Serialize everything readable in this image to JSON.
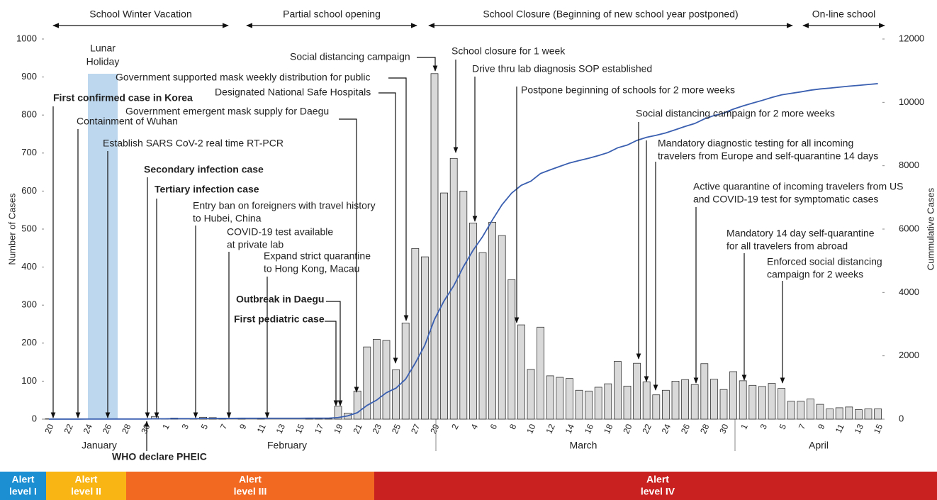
{
  "chart_data": {
    "type": "combo",
    "y_label": "Number of Cases",
    "y2_label": "Cummulative Cases",
    "ylim": [
      0,
      1000
    ],
    "yticks": [
      0,
      100,
      200,
      300,
      400,
      500,
      600,
      700,
      800,
      900,
      1000
    ],
    "y2lim": [
      0,
      12000
    ],
    "y2ticks": [
      0,
      2000,
      4000,
      6000,
      8000,
      10000,
      12000
    ],
    "categories": [
      "20",
      null,
      "22",
      null,
      "24",
      null,
      "26",
      null,
      "28",
      null,
      "30",
      null,
      "1",
      null,
      "3",
      null,
      "5",
      null,
      "7",
      null,
      "9",
      null,
      "11",
      null,
      "13",
      null,
      "15",
      null,
      "17",
      null,
      "19",
      null,
      "21",
      null,
      "23",
      null,
      "25",
      null,
      "27",
      null,
      "29",
      null,
      "2",
      null,
      "4",
      null,
      "6",
      null,
      "8",
      null,
      "10",
      null,
      "12",
      null,
      "14",
      null,
      "16",
      null,
      "18",
      null,
      "20",
      null,
      "22",
      null,
      "24",
      null,
      "26",
      null,
      "28",
      null,
      "30",
      null,
      "1",
      null,
      "3",
      null,
      "5",
      null,
      "7",
      null,
      "9",
      null,
      "11",
      null,
      "13",
      null,
      "15"
    ],
    "months": [
      "January",
      "February",
      "March",
      "April"
    ],
    "series": [
      {
        "type": "bar",
        "color": "#d9d9d9",
        "values": [
          1,
          0,
          0,
          0,
          1,
          0,
          1,
          1,
          0,
          0,
          0,
          7,
          1,
          3,
          0,
          1,
          5,
          4,
          1,
          0,
          3,
          0,
          1,
          0,
          0,
          0,
          0,
          1,
          1,
          1,
          34,
          16,
          74,
          190,
          210,
          207,
          130,
          253,
          449,
          427,
          909,
          595,
          686,
          600,
          516,
          438,
          518,
          483,
          367,
          248,
          131,
          242,
          114,
          110,
          107,
          76,
          74,
          84,
          93,
          152,
          87,
          147,
          98,
          64,
          76,
          100,
          104,
          91,
          146,
          105,
          78,
          125,
          101,
          89,
          86,
          94,
          81,
          47,
          47,
          53,
          39,
          27,
          30,
          32,
          25,
          27,
          27
        ]
      },
      {
        "type": "line",
        "axis": "y2",
        "color": "#3a5fb0",
        "values": [
          1,
          1,
          1,
          1,
          2,
          2,
          3,
          4,
          4,
          4,
          4,
          11,
          12,
          15,
          15,
          16,
          19,
          23,
          24,
          24,
          27,
          27,
          28,
          28,
          28,
          28,
          28,
          29,
          30,
          31,
          51,
          104,
          204,
          433,
          602,
          833,
          977,
          1261,
          1766,
          2337,
          3150,
          3736,
          4212,
          4812,
          5328,
          5766,
          6284,
          6767,
          7134,
          7382,
          7513,
          7755,
          7869,
          7979,
          8086,
          8162,
          8236,
          8320,
          8413,
          8565,
          8652,
          8799,
          8897,
          8961,
          9037,
          9137,
          9241,
          9332,
          9478,
          9583,
          9661,
          9786,
          9887,
          9976,
          10062,
          10156,
          10237,
          10284,
          10331,
          10384,
          10423,
          10450,
          10480,
          10512,
          10537,
          10564,
          10591
        ]
      }
    ],
    "highlight": {
      "lines": [
        "Lunar",
        "Holiday"
      ],
      "color": "#bdd7ee"
    },
    "periods": [
      "School Winter Vacation",
      "Partial school opening",
      "School Closure (Beginning of new school year postponed)",
      "On-line school"
    ],
    "annotations": [
      {
        "lines": [
          "First confirmed case in Korea"
        ],
        "bold": true
      },
      {
        "lines": [
          "Containment of Wuhan"
        ]
      },
      {
        "lines": [
          "Establish SARS CoV-2 real time RT-PCR"
        ]
      },
      {
        "lines": [
          "Secondary infection case"
        ],
        "bold": true
      },
      {
        "lines": [
          "Tertiary infection case"
        ],
        "bold": true
      },
      {
        "lines": [
          "Entry ban on foreigners with travel history",
          "to Hubei, China"
        ]
      },
      {
        "lines": [
          "COVID-19 test available",
          "at private lab"
        ]
      },
      {
        "lines": [
          "Expand strict quarantine",
          "to Hong Kong, Macau"
        ]
      },
      {
        "lines": [
          "Outbreak in Daegu"
        ],
        "bold": true
      },
      {
        "lines": [
          "First pediatric case"
        ],
        "bold": true
      },
      {
        "lines": [
          "Government emergent mask supply for Daegu"
        ]
      },
      {
        "lines": [
          "Designated National Safe Hospitals"
        ]
      },
      {
        "lines": [
          "Government supported mask weekly distribution for public"
        ]
      },
      {
        "lines": [
          "Social distancing campaign"
        ]
      },
      {
        "lines": [
          "School closure for 1 week"
        ]
      },
      {
        "lines": [
          "Drive thru lab diagnosis SOP established"
        ]
      },
      {
        "lines": [
          "Postpone beginning of schools for 2 more weeks"
        ]
      },
      {
        "lines": [
          "Social distancing campaign for 2 more weeks"
        ]
      },
      {
        "lines": [
          "Mandatory diagnostic testing for all incoming",
          "travelers from Europe and self-quarantine 14 days"
        ]
      },
      {
        "lines": [
          "Active quarantine of incoming travelers from US",
          "and COVID-19 test for symptomatic cases"
        ]
      },
      {
        "lines": [
          "Mandatory 14 day self-quarantine",
          "for all travelers from abroad"
        ]
      },
      {
        "lines": [
          "Enforced social distancing",
          "campaign for 2 weeks"
        ]
      },
      {
        "lines": [
          "WHO declare PHEIC"
        ],
        "bold": true
      }
    ],
    "alert_levels": [
      {
        "lines": [
          "Alert",
          "level I"
        ],
        "color": "#1b8fd2"
      },
      {
        "lines": [
          "Alert",
          "level II"
        ],
        "color": "#f8b513"
      },
      {
        "lines": [
          "Alert",
          "level III"
        ],
        "color": "#f26a22"
      },
      {
        "lines": [
          "Alert",
          "level IV"
        ],
        "color": "#c8211f"
      }
    ]
  }
}
